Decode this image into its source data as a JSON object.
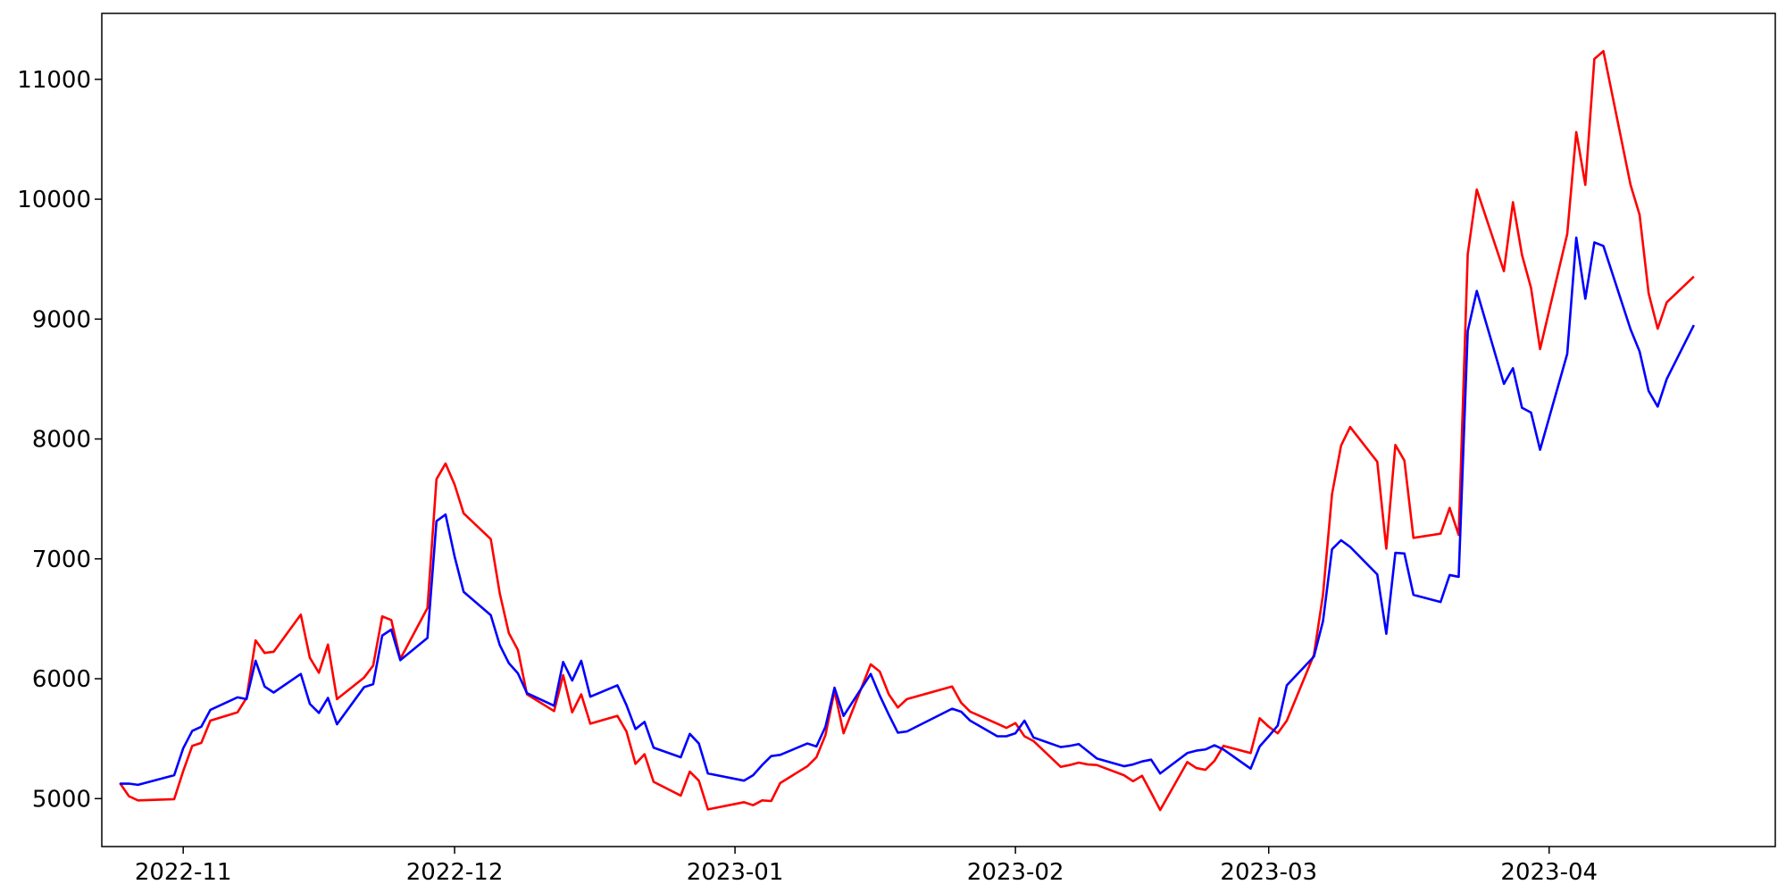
{
  "chart_data": {
    "type": "line",
    "title": "",
    "xlabel": "",
    "ylabel": "",
    "xlim": [
      "2022-10-23",
      "2023-04-26"
    ],
    "ylim": [
      4600,
      11550
    ],
    "grid": false,
    "x_ticks": [
      {
        "date": "2022-11-01",
        "label": "2022-11"
      },
      {
        "date": "2022-12-01",
        "label": "2022-12"
      },
      {
        "date": "2023-01-01",
        "label": "2023-01"
      },
      {
        "date": "2023-02-01",
        "label": "2023-02"
      },
      {
        "date": "2023-03-01",
        "label": "2023-03"
      },
      {
        "date": "2023-04-01",
        "label": "2023-04"
      }
    ],
    "y_ticks": [
      {
        "value": 5000,
        "label": "5000"
      },
      {
        "value": 6000,
        "label": "6000"
      },
      {
        "value": 7000,
        "label": "7000"
      },
      {
        "value": 8000,
        "label": "8000"
      },
      {
        "value": 9000,
        "label": "9000"
      },
      {
        "value": 10000,
        "label": "10000"
      },
      {
        "value": 11000,
        "label": "11000"
      }
    ],
    "series": [
      {
        "color": "#ff0000",
        "points": [
          [
            "2022-10-25",
            5130
          ],
          [
            "2022-10-26",
            5020
          ],
          [
            "2022-10-27",
            4985
          ],
          [
            "2022-10-31",
            4995
          ],
          [
            "2022-11-01",
            5230
          ],
          [
            "2022-11-02",
            5440
          ],
          [
            "2022-11-03",
            5465
          ],
          [
            "2022-11-04",
            5650
          ],
          [
            "2022-11-07",
            5720
          ],
          [
            "2022-11-08",
            5840
          ],
          [
            "2022-11-09",
            6320
          ],
          [
            "2022-11-10",
            6215
          ],
          [
            "2022-11-11",
            6225
          ],
          [
            "2022-11-14",
            6535
          ],
          [
            "2022-11-15",
            6175
          ],
          [
            "2022-11-16",
            6050
          ],
          [
            "2022-11-17",
            6285
          ],
          [
            "2022-11-18",
            5830
          ],
          [
            "2022-11-21",
            6010
          ],
          [
            "2022-11-22",
            6110
          ],
          [
            "2022-11-23",
            6520
          ],
          [
            "2022-11-24",
            6490
          ],
          [
            "2022-11-25",
            6165
          ],
          [
            "2022-11-28",
            6590
          ],
          [
            "2022-11-29",
            7665
          ],
          [
            "2022-11-30",
            7795
          ],
          [
            "2022-12-01",
            7620
          ],
          [
            "2022-12-02",
            7380
          ],
          [
            "2022-12-05",
            7165
          ],
          [
            "2022-12-06",
            6710
          ],
          [
            "2022-12-07",
            6380
          ],
          [
            "2022-12-08",
            6240
          ],
          [
            "2022-12-09",
            5870
          ],
          [
            "2022-12-12",
            5730
          ],
          [
            "2022-12-13",
            6030
          ],
          [
            "2022-12-14",
            5720
          ],
          [
            "2022-12-15",
            5870
          ],
          [
            "2022-12-16",
            5625
          ],
          [
            "2022-12-19",
            5690
          ],
          [
            "2022-12-20",
            5560
          ],
          [
            "2022-12-21",
            5290
          ],
          [
            "2022-12-22",
            5370
          ],
          [
            "2022-12-23",
            5140
          ],
          [
            "2022-12-26",
            5025
          ],
          [
            "2022-12-27",
            5225
          ],
          [
            "2022-12-28",
            5150
          ],
          [
            "2022-12-29",
            4910
          ],
          [
            "2023-01-02",
            4970
          ],
          [
            "2023-01-03",
            4945
          ],
          [
            "2023-01-04",
            4985
          ],
          [
            "2023-01-05",
            4980
          ],
          [
            "2023-01-06",
            5130
          ],
          [
            "2023-01-09",
            5270
          ],
          [
            "2023-01-10",
            5345
          ],
          [
            "2023-01-11",
            5530
          ],
          [
            "2023-01-12",
            5900
          ],
          [
            "2023-01-13",
            5545
          ],
          [
            "2023-01-16",
            6120
          ],
          [
            "2023-01-17",
            6060
          ],
          [
            "2023-01-18",
            5870
          ],
          [
            "2023-01-19",
            5760
          ],
          [
            "2023-01-20",
            5830
          ],
          [
            "2023-01-25",
            5935
          ],
          [
            "2023-01-26",
            5800
          ],
          [
            "2023-01-27",
            5725
          ],
          [
            "2023-01-30",
            5625
          ],
          [
            "2023-01-31",
            5590
          ],
          [
            "2023-02-01",
            5630
          ],
          [
            "2023-02-02",
            5520
          ],
          [
            "2023-02-03",
            5480
          ],
          [
            "2023-02-06",
            5265
          ],
          [
            "2023-02-07",
            5280
          ],
          [
            "2023-02-08",
            5300
          ],
          [
            "2023-02-09",
            5285
          ],
          [
            "2023-02-10",
            5280
          ],
          [
            "2023-02-13",
            5195
          ],
          [
            "2023-02-14",
            5145
          ],
          [
            "2023-02-15",
            5190
          ],
          [
            "2023-02-16",
            5050
          ],
          [
            "2023-02-17",
            4905
          ],
          [
            "2023-02-20",
            5305
          ],
          [
            "2023-02-21",
            5255
          ],
          [
            "2023-02-22",
            5240
          ],
          [
            "2023-02-23",
            5315
          ],
          [
            "2023-02-24",
            5440
          ],
          [
            "2023-02-27",
            5380
          ],
          [
            "2023-02-28",
            5670
          ],
          [
            "2023-03-01",
            5600
          ],
          [
            "2023-03-02",
            5545
          ],
          [
            "2023-03-03",
            5650
          ],
          [
            "2023-03-06",
            6200
          ],
          [
            "2023-03-07",
            6700
          ],
          [
            "2023-03-08",
            7540
          ],
          [
            "2023-03-09",
            7945
          ],
          [
            "2023-03-10",
            8100
          ],
          [
            "2023-03-13",
            7810
          ],
          [
            "2023-03-14",
            7085
          ],
          [
            "2023-03-15",
            7950
          ],
          [
            "2023-03-16",
            7820
          ],
          [
            "2023-03-17",
            7175
          ],
          [
            "2023-03-20",
            7210
          ],
          [
            "2023-03-21",
            7425
          ],
          [
            "2023-03-22",
            7200
          ],
          [
            "2023-03-23",
            9540
          ],
          [
            "2023-03-24",
            10080
          ],
          [
            "2023-03-27",
            9400
          ],
          [
            "2023-03-28",
            9975
          ],
          [
            "2023-03-29",
            9535
          ],
          [
            "2023-03-30",
            9260
          ],
          [
            "2023-03-31",
            8750
          ],
          [
            "2023-04-03",
            9710
          ],
          [
            "2023-04-04",
            10560
          ],
          [
            "2023-04-05",
            10120
          ],
          [
            "2023-04-06",
            11170
          ],
          [
            "2023-04-07",
            11235
          ],
          [
            "2023-04-10",
            10120
          ],
          [
            "2023-04-11",
            9870
          ],
          [
            "2023-04-12",
            9215
          ],
          [
            "2023-04-13",
            8920
          ],
          [
            "2023-04-14",
            9140
          ],
          [
            "2023-04-17",
            9355
          ]
        ]
      },
      {
        "color": "#0000ff",
        "points": [
          [
            "2022-10-25",
            5125
          ],
          [
            "2022-10-26",
            5125
          ],
          [
            "2022-10-27",
            5115
          ],
          [
            "2022-10-31",
            5195
          ],
          [
            "2022-11-01",
            5420
          ],
          [
            "2022-11-02",
            5565
          ],
          [
            "2022-11-03",
            5600
          ],
          [
            "2022-11-04",
            5740
          ],
          [
            "2022-11-07",
            5845
          ],
          [
            "2022-11-08",
            5830
          ],
          [
            "2022-11-09",
            6150
          ],
          [
            "2022-11-10",
            5935
          ],
          [
            "2022-11-11",
            5885
          ],
          [
            "2022-11-14",
            6040
          ],
          [
            "2022-11-15",
            5790
          ],
          [
            "2022-11-16",
            5715
          ],
          [
            "2022-11-17",
            5840
          ],
          [
            "2022-11-18",
            5620
          ],
          [
            "2022-11-21",
            5930
          ],
          [
            "2022-11-22",
            5955
          ],
          [
            "2022-11-23",
            6360
          ],
          [
            "2022-11-24",
            6410
          ],
          [
            "2022-11-25",
            6155
          ],
          [
            "2022-11-28",
            6340
          ],
          [
            "2022-11-29",
            7315
          ],
          [
            "2022-11-30",
            7370
          ],
          [
            "2022-12-01",
            7020
          ],
          [
            "2022-12-02",
            6725
          ],
          [
            "2022-12-05",
            6530
          ],
          [
            "2022-12-06",
            6280
          ],
          [
            "2022-12-07",
            6130
          ],
          [
            "2022-12-08",
            6045
          ],
          [
            "2022-12-09",
            5880
          ],
          [
            "2022-12-12",
            5775
          ],
          [
            "2022-12-13",
            6140
          ],
          [
            "2022-12-14",
            5985
          ],
          [
            "2022-12-15",
            6150
          ],
          [
            "2022-12-16",
            5850
          ],
          [
            "2022-12-19",
            5945
          ],
          [
            "2022-12-20",
            5780
          ],
          [
            "2022-12-21",
            5580
          ],
          [
            "2022-12-22",
            5640
          ],
          [
            "2022-12-23",
            5425
          ],
          [
            "2022-12-26",
            5345
          ],
          [
            "2022-12-27",
            5540
          ],
          [
            "2022-12-28",
            5460
          ],
          [
            "2022-12-29",
            5210
          ],
          [
            "2023-01-02",
            5150
          ],
          [
            "2023-01-03",
            5195
          ],
          [
            "2023-01-04",
            5280
          ],
          [
            "2023-01-05",
            5355
          ],
          [
            "2023-01-06",
            5365
          ],
          [
            "2023-01-09",
            5460
          ],
          [
            "2023-01-10",
            5435
          ],
          [
            "2023-01-11",
            5600
          ],
          [
            "2023-01-12",
            5925
          ],
          [
            "2023-01-13",
            5690
          ],
          [
            "2023-01-16",
            6040
          ],
          [
            "2023-01-17",
            5860
          ],
          [
            "2023-01-18",
            5700
          ],
          [
            "2023-01-19",
            5550
          ],
          [
            "2023-01-20",
            5560
          ],
          [
            "2023-01-25",
            5750
          ],
          [
            "2023-01-26",
            5725
          ],
          [
            "2023-01-27",
            5650
          ],
          [
            "2023-01-30",
            5520
          ],
          [
            "2023-01-31",
            5520
          ],
          [
            "2023-02-01",
            5545
          ],
          [
            "2023-02-02",
            5650
          ],
          [
            "2023-02-03",
            5510
          ],
          [
            "2023-02-06",
            5430
          ],
          [
            "2023-02-07",
            5440
          ],
          [
            "2023-02-08",
            5455
          ],
          [
            "2023-02-09",
            5395
          ],
          [
            "2023-02-10",
            5335
          ],
          [
            "2023-02-13",
            5270
          ],
          [
            "2023-02-14",
            5285
          ],
          [
            "2023-02-15",
            5310
          ],
          [
            "2023-02-16",
            5325
          ],
          [
            "2023-02-17",
            5210
          ],
          [
            "2023-02-20",
            5380
          ],
          [
            "2023-02-21",
            5400
          ],
          [
            "2023-02-22",
            5410
          ],
          [
            "2023-02-23",
            5445
          ],
          [
            "2023-02-24",
            5410
          ],
          [
            "2023-02-27",
            5250
          ],
          [
            "2023-02-28",
            5435
          ],
          [
            "2023-03-01",
            5520
          ],
          [
            "2023-03-02",
            5610
          ],
          [
            "2023-03-03",
            5945
          ],
          [
            "2023-03-06",
            6185
          ],
          [
            "2023-03-07",
            6480
          ],
          [
            "2023-03-08",
            7080
          ],
          [
            "2023-03-09",
            7155
          ],
          [
            "2023-03-10",
            7100
          ],
          [
            "2023-03-13",
            6870
          ],
          [
            "2023-03-14",
            6375
          ],
          [
            "2023-03-15",
            7050
          ],
          [
            "2023-03-16",
            7045
          ],
          [
            "2023-03-17",
            6700
          ],
          [
            "2023-03-20",
            6640
          ],
          [
            "2023-03-21",
            6865
          ],
          [
            "2023-03-22",
            6850
          ],
          [
            "2023-03-23",
            8900
          ],
          [
            "2023-03-24",
            9235
          ],
          [
            "2023-03-27",
            8460
          ],
          [
            "2023-03-28",
            8590
          ],
          [
            "2023-03-29",
            8260
          ],
          [
            "2023-03-30",
            8220
          ],
          [
            "2023-03-31",
            7910
          ],
          [
            "2023-04-03",
            8710
          ],
          [
            "2023-04-04",
            9680
          ],
          [
            "2023-04-05",
            9170
          ],
          [
            "2023-04-06",
            9640
          ],
          [
            "2023-04-07",
            9610
          ],
          [
            "2023-04-10",
            8915
          ],
          [
            "2023-04-11",
            8730
          ],
          [
            "2023-04-12",
            8400
          ],
          [
            "2023-04-13",
            8270
          ],
          [
            "2023-04-14",
            8500
          ],
          [
            "2023-04-17",
            8950
          ]
        ]
      }
    ]
  }
}
